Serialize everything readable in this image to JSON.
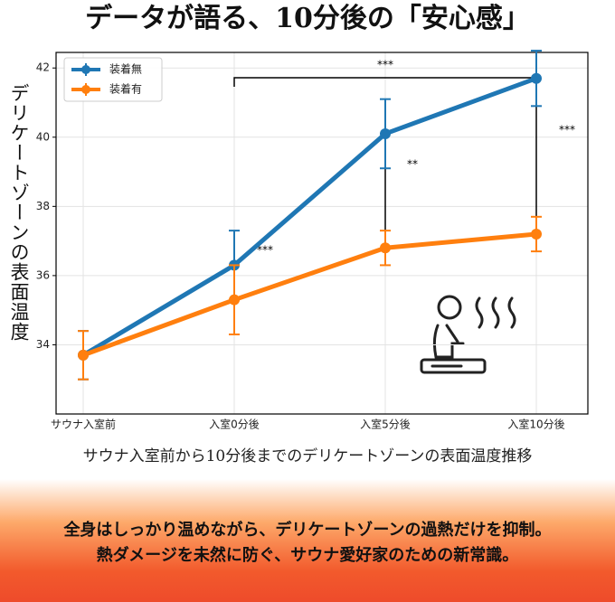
{
  "header": {
    "title": "データが語る、10分後の「安心感」"
  },
  "chart_data": {
    "type": "line",
    "y_label": "デリケートゾーンの表面温度",
    "caption": "サウナ入室前から10分後までのデリケートゾーンの表面温度推移",
    "categories": [
      "サウナ入室前",
      "入室0分後",
      "入室5分後",
      "入室10分後"
    ],
    "series": [
      {
        "name": "装着無",
        "color": "#1f77b4",
        "values": [
          33.7,
          36.3,
          40.1,
          41.7
        ],
        "errors": [
          0.7,
          1.0,
          1.0,
          0.8
        ]
      },
      {
        "name": "装着有",
        "color": "#ff7f0e",
        "values": [
          33.7,
          35.3,
          36.8,
          37.2
        ],
        "errors": [
          0.7,
          1.0,
          0.5,
          0.5
        ]
      }
    ],
    "ylim": [
      32.0,
      42.45
    ],
    "yticks": [
      34,
      36,
      38,
      40,
      42
    ],
    "grid": true,
    "legend": "upper left",
    "annotations": [
      "***",
      "***",
      "**",
      "***"
    ]
  },
  "footer": {
    "lines": [
      "全身はしっかり温めながら、デリケートゾーンの過熱だけを抑制。",
      "熱ダメージを未然に防ぐ、サウナ愛好家のための新常識。"
    ]
  }
}
